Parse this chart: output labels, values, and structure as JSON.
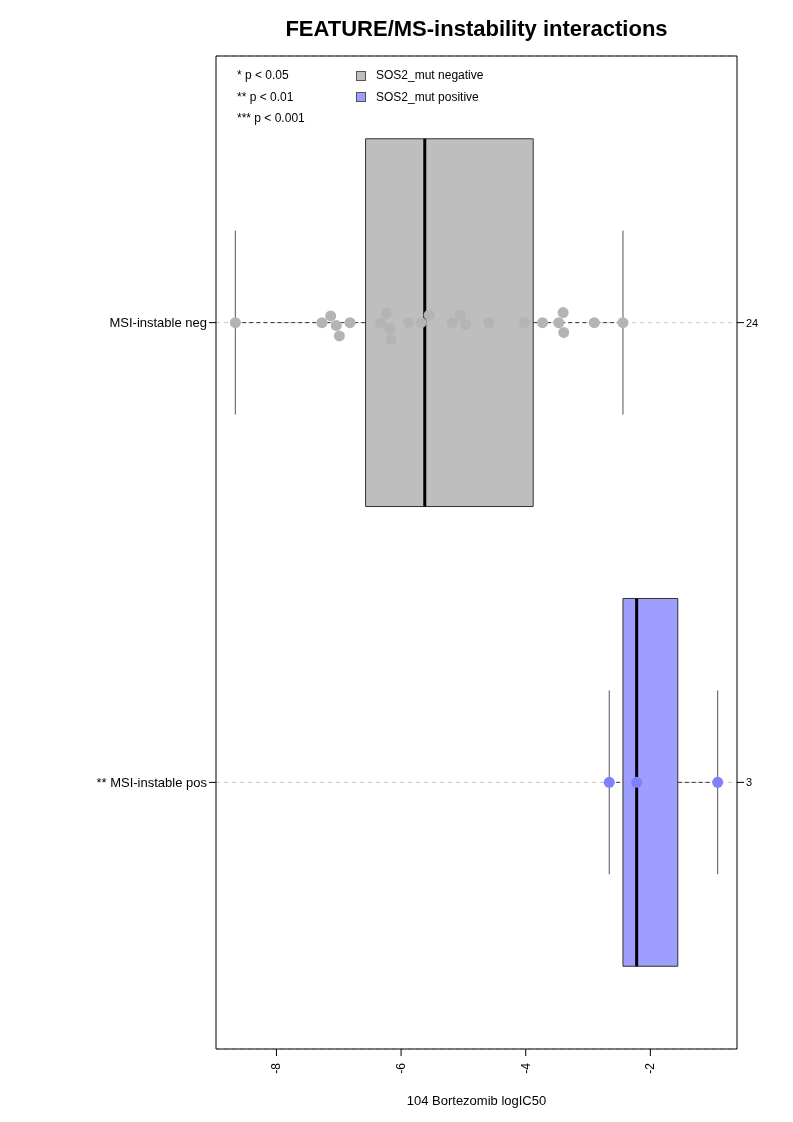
{
  "chart_data": {
    "type": "box",
    "title": "FEATURE/MS-instability interactions",
    "xlabel": "104 Bortezomib logIC50",
    "orientation": "horizontal",
    "categories": [
      "MSI-instable neg",
      "** MSI-instable pos"
    ],
    "y2_categories": [
      "24",
      "3"
    ],
    "xlim": [
      -8.97,
      -0.61
    ],
    "xticks": [
      -8,
      -6,
      -4,
      -2
    ],
    "grid": "y",
    "legend": "top left",
    "marker": "circle",
    "annotations": [
      "* p < 0.05",
      "** p < 0.01",
      "*** p < 0.001"
    ],
    "series": [
      {
        "name": "SOS2_mut negative",
        "color": "#bebebe",
        "boxes": [
          {
            "low": -8.66,
            "q1": -6.57,
            "median": -5.62,
            "q3": -3.88,
            "high": -2.44
          },
          null
        ]
      },
      {
        "name": "SOS2_mut positive",
        "color": "#9e9eff",
        "boxes": [
          null,
          {
            "low": -2.66,
            "q1": -2.44,
            "median": -2.22,
            "q3": -1.56,
            "high": -0.92
          }
        ]
      },
      {
        "type": "scatter",
        "color": "#b4b4b4",
        "x": [
          "MSI-instable neg",
          "MSI-instable neg",
          "MSI-instable neg",
          "MSI-instable neg",
          "MSI-instable neg",
          "MSI-instable neg",
          "MSI-instable neg",
          "MSI-instable neg",
          "MSI-instable neg",
          "MSI-instable neg",
          "MSI-instable neg",
          "MSI-instable neg",
          "MSI-instable neg",
          "MSI-instable neg",
          "MSI-instable neg",
          "MSI-instable neg",
          "MSI-instable neg",
          "MSI-instable neg",
          "MSI-instable neg",
          "MSI-instable neg",
          "MSI-instable neg",
          "MSI-instable neg",
          "MSI-instable neg",
          "MSI-instable neg"
        ],
        "values": [
          -8.66,
          -7.27,
          -7.13,
          -7.04,
          -6.99,
          -6.82,
          -6.33,
          -6.24,
          -6.18,
          -6.16,
          -5.88,
          -5.68,
          -5.55,
          -5.18,
          -5.05,
          -4.96,
          -4.59,
          -4.02,
          -3.73,
          -3.47,
          -3.4,
          -3.39,
          -2.9,
          -2.44
        ]
      },
      {
        "type": "scatter",
        "color": "#7f7fff",
        "x": [
          "** MSI-instable pos",
          "** MSI-instable pos",
          "** MSI-instable pos"
        ],
        "values": [
          -2.66,
          -2.22,
          -0.92
        ]
      }
    ]
  }
}
